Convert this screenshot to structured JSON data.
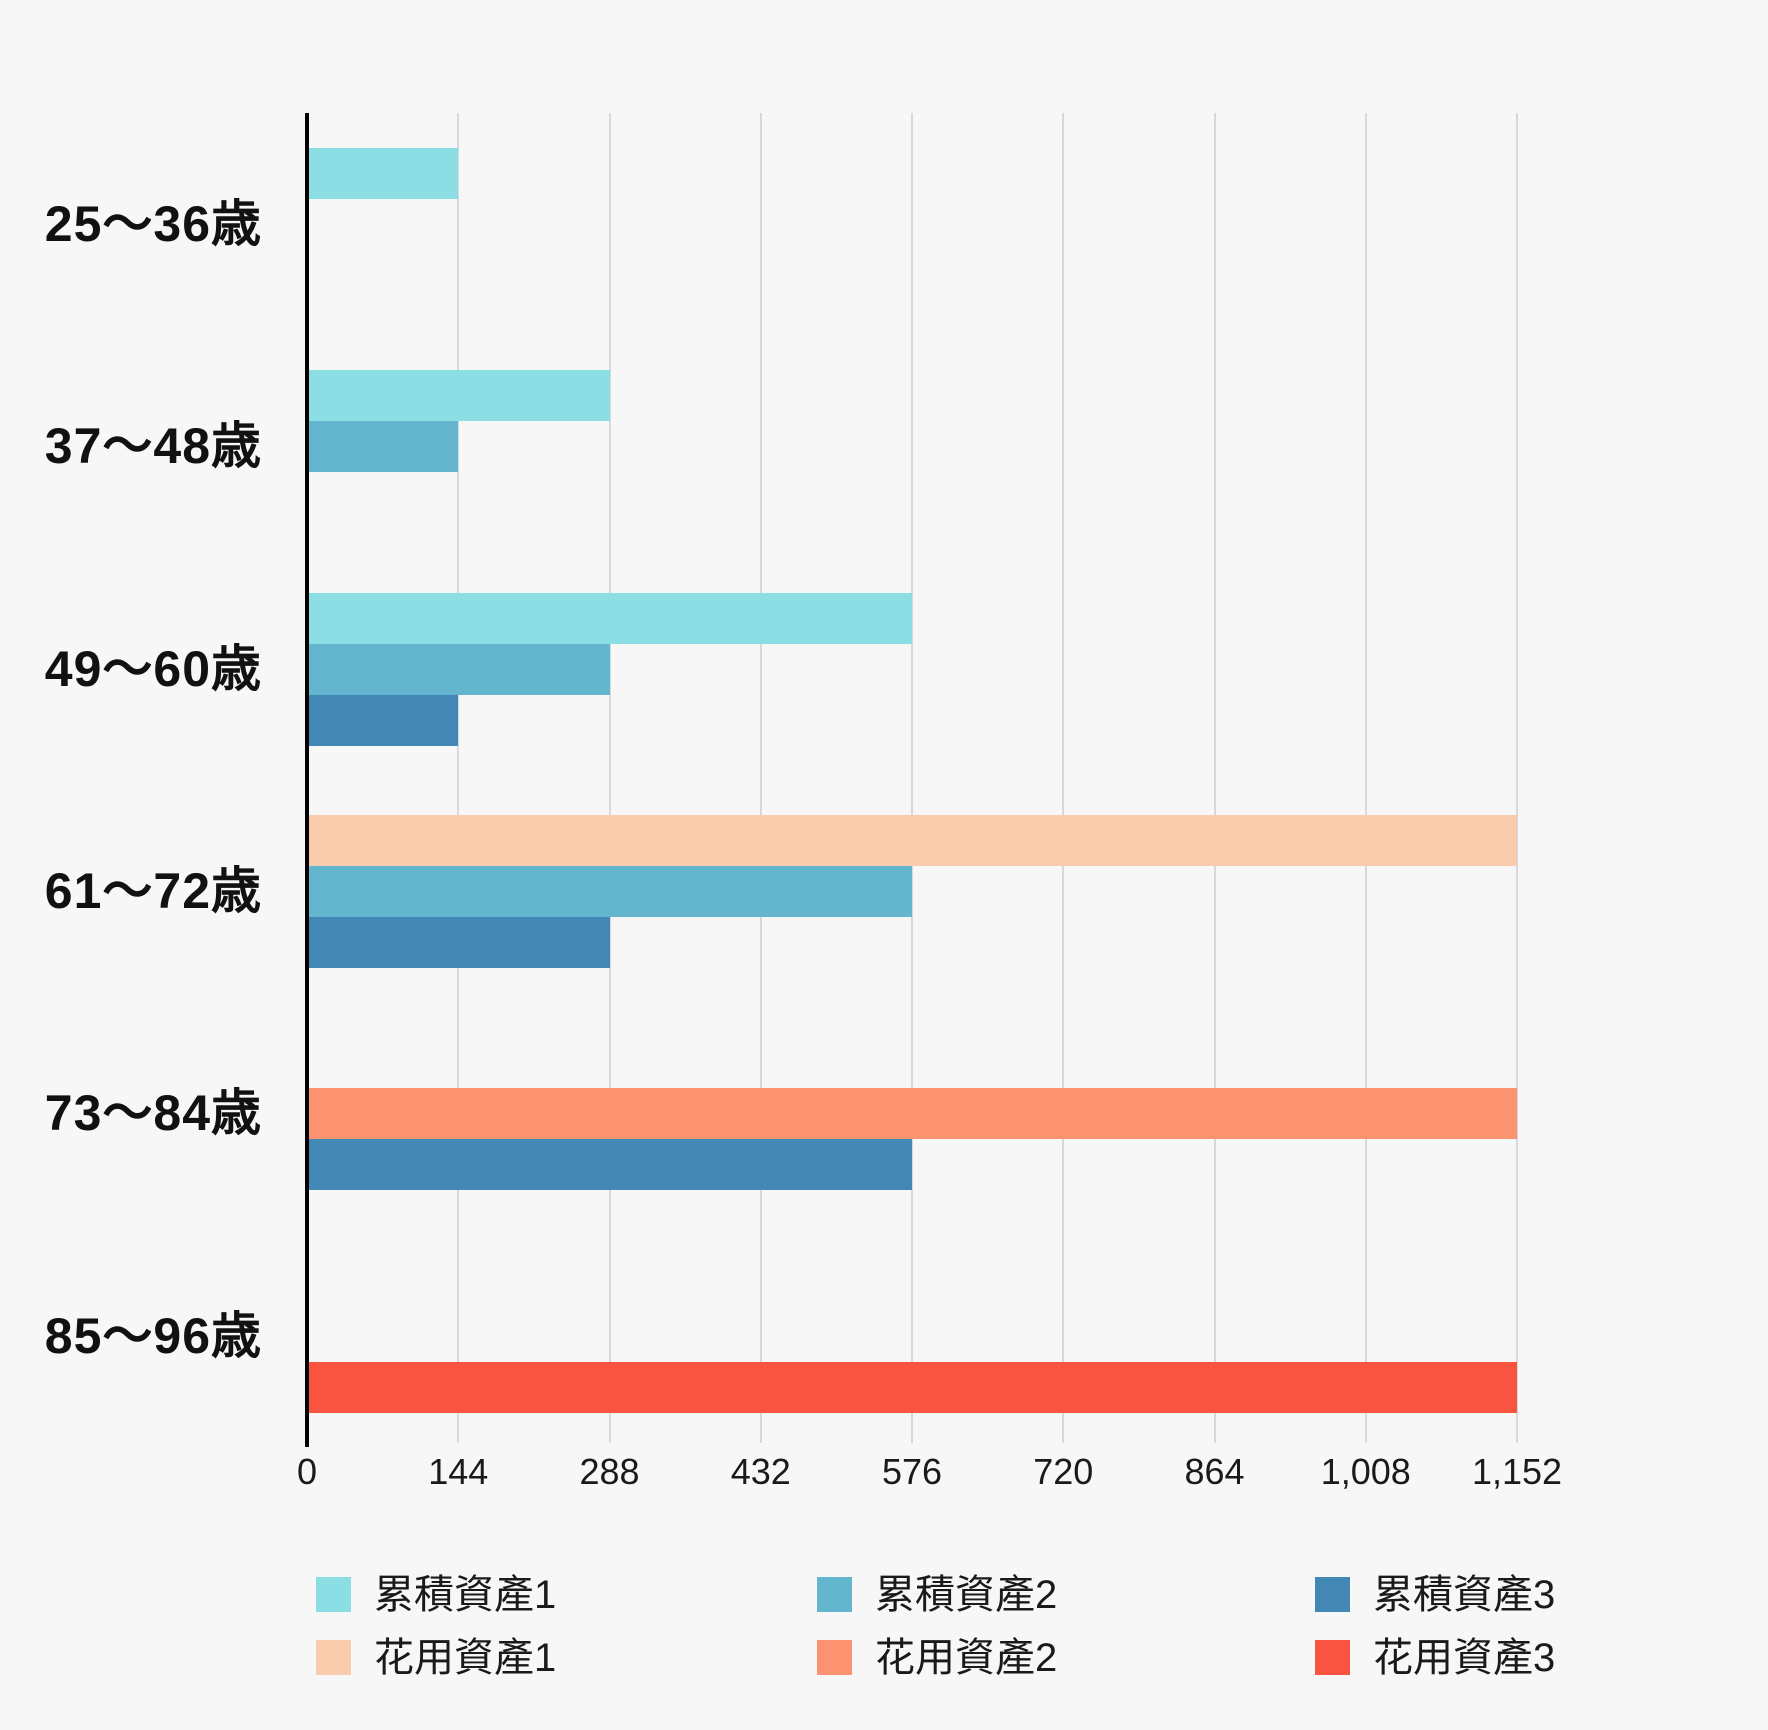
{
  "page": {
    "background": "#F7F7F7",
    "axis_color": "#000000",
    "grid_color": "#D8D8D8",
    "text_color": "#1A1A1A"
  },
  "chart_data": {
    "type": "bar",
    "orientation": "horizontal",
    "title": "",
    "categories": [
      "25〜36歳",
      "37〜48歳",
      "49〜60歳",
      "61〜72歳",
      "73〜84歳",
      "85〜96歳"
    ],
    "series": [
      {
        "name": "累積資產1",
        "color": "#8BDFE4",
        "row": 0,
        "values": [
          144,
          288,
          576,
          null,
          null,
          null
        ]
      },
      {
        "name": "累積資產2",
        "color": "#64B6CF",
        "row": 1,
        "values": [
          null,
          144,
          288,
          576,
          null,
          null
        ]
      },
      {
        "name": "累積資產3",
        "color": "#4387B4",
        "row": 2,
        "values": [
          null,
          null,
          144,
          288,
          576,
          null
        ]
      },
      {
        "name": "花用資產1",
        "color": "#FACCAE",
        "row": 0,
        "values": [
          null,
          null,
          null,
          1152,
          null,
          null
        ]
      },
      {
        "name": "花用資產2",
        "color": "#FB9270",
        "row": 1,
        "values": [
          null,
          null,
          null,
          null,
          1152,
          null
        ]
      },
      {
        "name": "花用資產3",
        "color": "#F85440",
        "row": 2,
        "values": [
          null,
          null,
          null,
          null,
          null,
          1152
        ]
      }
    ],
    "x_ticks": [
      "0",
      "144",
      "288",
      "432",
      "576",
      "720",
      "864",
      "1,008",
      "1,152"
    ],
    "x_tick_values": [
      0,
      144,
      288,
      432,
      576,
      720,
      864,
      1008,
      1152
    ],
    "xlim": [
      0,
      1152
    ],
    "grid": true,
    "legend_position": "bottom",
    "legend_rows": [
      [
        "累積資產1",
        "累積資產2",
        "累積資產3"
      ],
      [
        "花用資產1",
        "花用資產2",
        "花用資產3"
      ]
    ]
  }
}
